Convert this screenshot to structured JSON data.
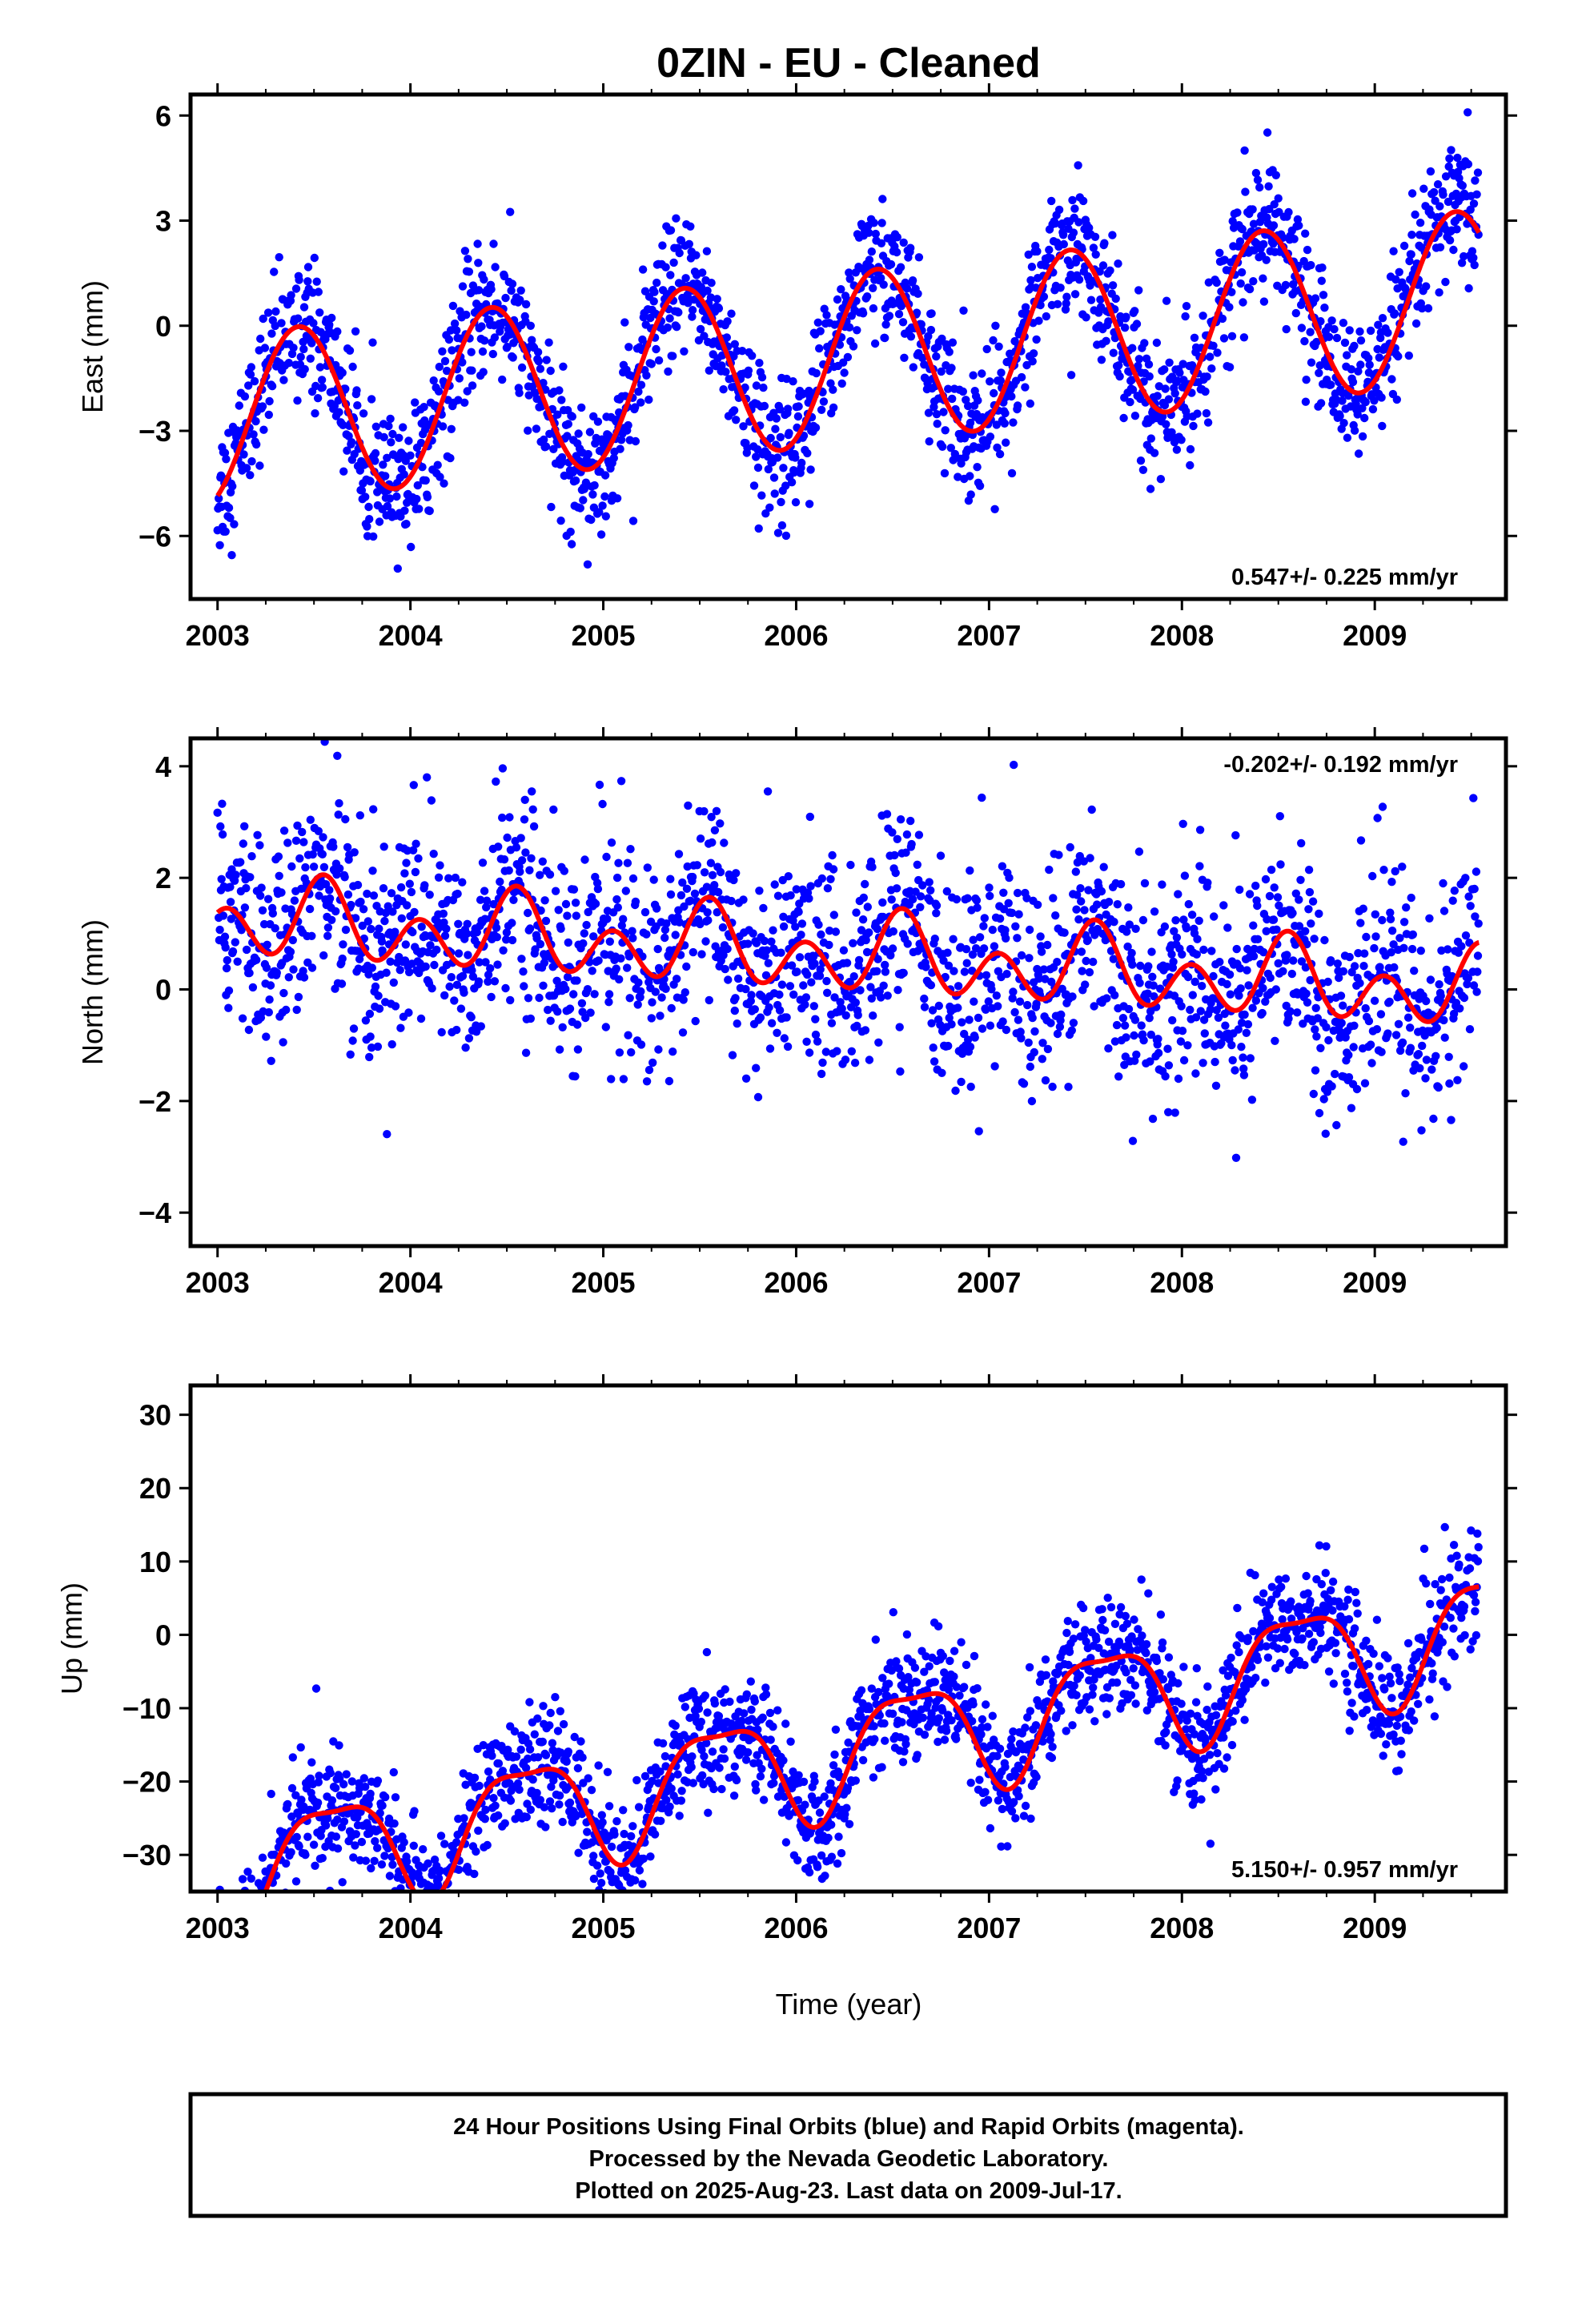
{
  "title": "0ZIN  - EU - Cleaned",
  "xlabel": "Time (year)",
  "footer": {
    "line1": "24 Hour Positions Using Final Orbits (blue) and Rapid Orbits (magenta).",
    "line2": "Processed by the Nevada Geodetic Laboratory.",
    "line3": "Plotted on 2025-Aug-23. Last data on 2009-Jul-17."
  },
  "colors": {
    "observations": "#0000ff",
    "model": "#ff0000",
    "frame": "#000000"
  },
  "chart_data": [
    {
      "type": "scatter",
      "ylabel": "East (mm)",
      "rate_label": "0.547+/- 0.225 mm/yr",
      "rate_position": "bottom-right",
      "xlim": [
        2002.86,
        2009.68
      ],
      "ylim": [
        -7.8,
        6.6
      ],
      "xticks": [
        "2003",
        "2004",
        "2005",
        "2006",
        "2007",
        "2008",
        "2009"
      ],
      "yticks": [
        "6",
        "3",
        "0",
        "-3",
        "-6"
      ],
      "data_range": [
        2003.0,
        2009.54
      ],
      "model": {
        "intercept": -0.9,
        "rate": 0.547,
        "annual_amplitude": 2.45,
        "annual_peak": 0.42,
        "noise_sd": 0.95,
        "start_value": -3.8
      },
      "series": [
        {
          "name": "Final Orbits (blue)",
          "color": "#0000ff"
        },
        {
          "name": "Model fit",
          "color": "#ff0000"
        }
      ]
    },
    {
      "type": "scatter",
      "ylabel": "North (mm)",
      "rate_label": "-0.202+/- 0.192 mm/yr",
      "rate_position": "top-right",
      "xlim": [
        2002.86,
        2009.68
      ],
      "ylim": [
        -4.6,
        4.5
      ],
      "xticks": [
        "2003",
        "2004",
        "2005",
        "2006",
        "2007",
        "2008",
        "2009"
      ],
      "yticks": [
        "4",
        "2",
        "0",
        "-2",
        "-4"
      ],
      "data_range": [
        2003.0,
        2009.54
      ],
      "model": {
        "intercept": 0.6,
        "rate": -0.202,
        "annual_amplitude": 0.35,
        "annual_peak": 0.55,
        "semiannual_amplitude": 0.55,
        "semiannual_peak": 0.05,
        "noise_sd": 0.95,
        "start_value": 1.0
      },
      "series": [
        {
          "name": "Final Orbits (blue)",
          "color": "#0000ff"
        },
        {
          "name": "Model fit",
          "color": "#ff0000"
        }
      ]
    },
    {
      "type": "scatter",
      "ylabel": "Up (mm)",
      "rate_label": "5.150+/- 0.957 mm/yr",
      "rate_position": "bottom-right",
      "xlim": [
        2002.86,
        2009.68
      ],
      "ylim": [
        -35,
        34
      ],
      "xticks": [
        "2003",
        "2004",
        "2005",
        "2006",
        "2007",
        "2008",
        "2009"
      ],
      "yticks": [
        "30",
        "20",
        "10",
        "0",
        "-10",
        "-20",
        "-30"
      ],
      "data_range": [
        2003.0,
        2009.54
      ],
      "model": {
        "intercept": -15.5,
        "rate": 5.15,
        "annual_amplitude": 7.5,
        "annual_peak": 0.6,
        "semiannual_amplitude": 2.2,
        "semiannual_peak": 0.35,
        "noise_sd": 4.0,
        "start_value": -22
      },
      "series": [
        {
          "name": "Final Orbits (blue)",
          "color": "#0000ff"
        },
        {
          "name": "Model fit",
          "color": "#ff0000"
        }
      ]
    }
  ]
}
